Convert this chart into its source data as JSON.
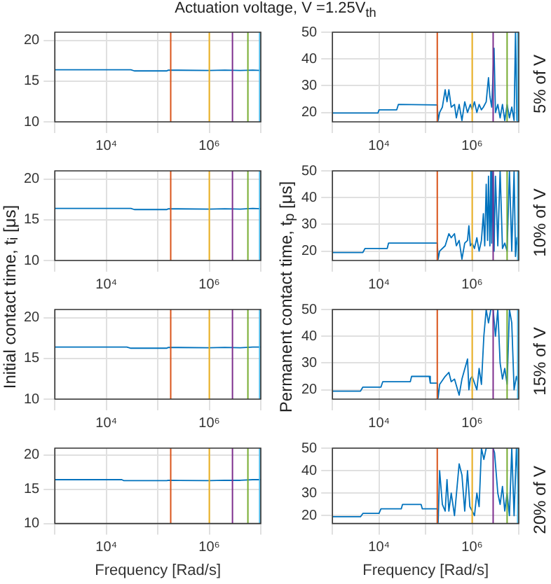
{
  "chart_data": [
    {
      "type": "line",
      "title": "Actuation voltage, V =1.25V$_{th}$",
      "xlim": [
        1000,
        10000000
      ],
      "xticks": [
        {
          "value": 1000,
          "label": null
        },
        {
          "value": 10000,
          "label": "10⁴"
        },
        {
          "value": 100000,
          "label": null
        },
        {
          "value": 1000000,
          "label": "10⁶"
        },
        {
          "value": 10000000,
          "label": null
        }
      ],
      "ylim": [
        10,
        21
      ],
      "yticks": [
        10,
        15,
        20
      ],
      "log": "x",
      "grid": true,
      "series": [
        {
          "color": "#0072bd",
          "x": [
            1000,
            30000,
            35000,
            150000,
            160000,
            1000000,
            2000000,
            4000000,
            7000000,
            10000000
          ],
          "values": [
            16.4,
            16.4,
            16.25,
            16.25,
            16.35,
            16.3,
            16.35,
            16.3,
            16.35,
            16.3
          ]
        }
      ],
      "ref_lines": [
        {
          "axis": "x",
          "value": 178000,
          "color": "#d95319"
        },
        {
          "axis": "x",
          "value": 1000000,
          "color": "#edb120"
        },
        {
          "axis": "x",
          "value": 2820000,
          "color": "#7e2f8e"
        },
        {
          "axis": "x",
          "value": 5620000,
          "color": "#77ac30"
        },
        {
          "axis": "x",
          "value": 9500000,
          "color": "#4dbeee"
        }
      ]
    },
    {
      "type": "line",
      "y2label": "5% of V",
      "xlim": [
        1000,
        10000000
      ],
      "xticks": [
        {
          "value": 1000,
          "label": null
        },
        {
          "value": 10000,
          "label": "10⁴"
        },
        {
          "value": 100000,
          "label": null
        },
        {
          "value": 1000000,
          "label": "10⁶"
        },
        {
          "value": 10000000,
          "label": null
        }
      ],
      "ylim": [
        16.5,
        50
      ],
      "yticks": [
        20,
        30,
        40,
        50
      ],
      "log": "x",
      "grid": true,
      "series": [
        {
          "color": "#0072bd",
          "x": [
            1000,
            9500,
            10000,
            24000,
            26000,
            178000,
            186000,
            200000,
            229000,
            263000,
            288000,
            316000,
            355000,
            417000,
            457000,
            525000,
            603000,
            692000,
            794000,
            912000,
            1000000,
            1120000,
            1260000,
            1410000,
            1580000,
            1740000,
            2000000,
            2240000,
            2400000,
            2630000,
            2950000,
            3160000,
            3550000,
            3980000,
            4470000,
            5010000,
            5620000,
            6310000,
            7080000,
            7940000,
            8510000,
            9120000,
            10000000
          ],
          "values": [
            19.8,
            19.8,
            21,
            21,
            23,
            22.8,
            17,
            20,
            22,
            28.5,
            24,
            28.5,
            22,
            23,
            18,
            23,
            17,
            24,
            20,
            23,
            21,
            24,
            20,
            23,
            21,
            22,
            24,
            33,
            26,
            22,
            44,
            20,
            23,
            18,
            23,
            17,
            23,
            18,
            22,
            17,
            50,
            17,
            21
          ]
        }
      ],
      "ref_lines": [
        {
          "axis": "x",
          "value": 178000,
          "color": "#d95319"
        },
        {
          "axis": "x",
          "value": 1000000,
          "color": "#edb120"
        },
        {
          "axis": "x",
          "value": 2820000,
          "color": "#7e2f8e"
        },
        {
          "axis": "x",
          "value": 5620000,
          "color": "#77ac30"
        },
        {
          "axis": "x",
          "value": 9500000,
          "color": "#4dbeee"
        }
      ]
    },
    {
      "type": "line",
      "ylabel": "Initial contact time, t$_{i}$ [μs]",
      "xlim": [
        1000,
        10000000
      ],
      "xticks": [
        {
          "value": 1000,
          "label": null
        },
        {
          "value": 10000,
          "label": "10⁴"
        },
        {
          "value": 100000,
          "label": null
        },
        {
          "value": 1000000,
          "label": "10⁶"
        },
        {
          "value": 10000000,
          "label": null
        }
      ],
      "ylim": [
        10,
        21
      ],
      "yticks": [
        10,
        15,
        20
      ],
      "log": "x",
      "grid": true,
      "series": [
        {
          "color": "#0072bd",
          "x": [
            1000,
            30000,
            35000,
            150000,
            160000,
            1000000,
            2000000,
            4000000,
            7000000,
            10000000
          ],
          "values": [
            16.4,
            16.4,
            16.25,
            16.25,
            16.35,
            16.3,
            16.35,
            16.3,
            16.4,
            16.35
          ]
        }
      ],
      "ref_lines": [
        {
          "axis": "x",
          "value": 178000,
          "color": "#d95319"
        },
        {
          "axis": "x",
          "value": 1000000,
          "color": "#edb120"
        },
        {
          "axis": "x",
          "value": 2820000,
          "color": "#7e2f8e"
        },
        {
          "axis": "x",
          "value": 5620000,
          "color": "#77ac30"
        },
        {
          "axis": "x",
          "value": 9500000,
          "color": "#4dbeee"
        }
      ]
    },
    {
      "type": "line",
      "ylabel": "Permanent contact time, t$_{p}$ [μs]",
      "y2label": "10% of V",
      "xlim": [
        1000,
        10000000
      ],
      "xticks": [
        {
          "value": 1000,
          "label": null
        },
        {
          "value": 10000,
          "label": "10⁴"
        },
        {
          "value": 100000,
          "label": null
        },
        {
          "value": 1000000,
          "label": "10⁶"
        },
        {
          "value": 10000000,
          "label": null
        }
      ],
      "ylim": [
        16.5,
        50
      ],
      "yticks": [
        20,
        30,
        40,
        50
      ],
      "log": "x",
      "grid": true,
      "series": [
        {
          "color": "#0072bd",
          "x": [
            1000,
            4500,
            5000,
            15000,
            16000,
            178000,
            186000,
            200000,
            263000,
            316000,
            355000,
            417000,
            457000,
            525000,
            603000,
            692000,
            794000,
            850000,
            912000,
            1000000,
            1120000,
            1260000,
            1410000,
            1580000,
            1740000,
            1860000,
            2000000,
            2140000,
            2240000,
            2400000,
            2510000,
            2630000,
            2820000,
            2950000,
            3160000,
            3550000,
            3980000,
            4470000,
            5010000,
            5620000,
            6310000,
            7080000,
            7940000,
            8510000,
            9120000,
            10000000
          ],
          "values": [
            19.5,
            19.5,
            21,
            21,
            23,
            23,
            17,
            20,
            22,
            26.5,
            25,
            26.5,
            22,
            24,
            17,
            23,
            24,
            29.5,
            22,
            23,
            21,
            25,
            20,
            24,
            34,
            22,
            45,
            24,
            48,
            22,
            50,
            23,
            50,
            20,
            48,
            22,
            50,
            21,
            23,
            20,
            50,
            20,
            50,
            18,
            25,
            20
          ]
        }
      ],
      "ref_lines": [
        {
          "axis": "x",
          "value": 178000,
          "color": "#d95319"
        },
        {
          "axis": "x",
          "value": 1000000,
          "color": "#edb120"
        },
        {
          "axis": "x",
          "value": 2820000,
          "color": "#7e2f8e"
        },
        {
          "axis": "x",
          "value": 5620000,
          "color": "#77ac30"
        },
        {
          "axis": "x",
          "value": 9500000,
          "color": "#4dbeee"
        }
      ]
    },
    {
      "type": "line",
      "xlim": [
        1000,
        10000000
      ],
      "xticks": [
        {
          "value": 1000,
          "label": null
        },
        {
          "value": 10000,
          "label": "10⁴"
        },
        {
          "value": 100000,
          "label": null
        },
        {
          "value": 1000000,
          "label": "10⁶"
        },
        {
          "value": 10000000,
          "label": null
        }
      ],
      "ylim": [
        10,
        21
      ],
      "yticks": [
        10,
        15,
        20
      ],
      "log": "x",
      "grid": true,
      "series": [
        {
          "color": "#0072bd",
          "x": [
            1000,
            25000,
            30000,
            150000,
            160000,
            1000000,
            2000000,
            4000000,
            7000000,
            10000000
          ],
          "values": [
            16.4,
            16.4,
            16.25,
            16.25,
            16.35,
            16.3,
            16.35,
            16.3,
            16.4,
            16.4
          ]
        }
      ],
      "ref_lines": [
        {
          "axis": "x",
          "value": 178000,
          "color": "#d95319"
        },
        {
          "axis": "x",
          "value": 1000000,
          "color": "#edb120"
        },
        {
          "axis": "x",
          "value": 2820000,
          "color": "#7e2f8e"
        },
        {
          "axis": "x",
          "value": 5620000,
          "color": "#77ac30"
        },
        {
          "axis": "x",
          "value": 9500000,
          "color": "#4dbeee"
        }
      ]
    },
    {
      "type": "line",
      "y2label": "15% of V",
      "xlim": [
        1000,
        10000000
      ],
      "xticks": [
        {
          "value": 1000,
          "label": null
        },
        {
          "value": 10000,
          "label": "10⁴"
        },
        {
          "value": 100000,
          "label": null
        },
        {
          "value": 1000000,
          "label": "10⁶"
        },
        {
          "value": 10000000,
          "label": null
        }
      ],
      "ylim": [
        16.5,
        50
      ],
      "yticks": [
        20,
        30,
        40,
        50
      ],
      "log": "x",
      "grid": true,
      "series": [
        {
          "color": "#0072bd",
          "x": [
            1000,
            4000,
            4500,
            11000,
            12000,
            47000,
            50000,
            120000,
            126000,
            178000,
            186000,
            200000,
            263000,
            316000,
            355000,
            417000,
            525000,
            603000,
            794000,
            850000,
            912000,
            1000000,
            1260000,
            1410000,
            1580000,
            1780000,
            2000000,
            2240000,
            2510000,
            2820000,
            3160000,
            3550000,
            3980000,
            4470000,
            5010000,
            5620000,
            6310000,
            7080000,
            7940000,
            8910000,
            10000000
          ],
          "values": [
            19.5,
            19.5,
            21,
            21,
            23,
            23,
            25,
            25,
            22.5,
            22.5,
            17,
            22,
            25,
            26.5,
            23,
            24,
            18,
            24,
            31.5,
            20,
            24,
            25,
            20,
            28,
            22,
            40,
            50,
            45,
            50,
            50,
            40,
            50,
            30,
            24,
            28,
            22,
            50,
            45,
            20,
            25,
            22
          ]
        }
      ],
      "ref_lines": [
        {
          "axis": "x",
          "value": 178000,
          "color": "#d95319"
        },
        {
          "axis": "x",
          "value": 1000000,
          "color": "#edb120"
        },
        {
          "axis": "x",
          "value": 2820000,
          "color": "#7e2f8e"
        },
        {
          "axis": "x",
          "value": 5620000,
          "color": "#77ac30"
        },
        {
          "axis": "x",
          "value": 9500000,
          "color": "#4dbeee"
        }
      ]
    },
    {
      "type": "line",
      "xlabel": "Frequency [Rad/s]",
      "xlim": [
        1000,
        10000000
      ],
      "xticks": [
        {
          "value": 1000,
          "label": null
        },
        {
          "value": 10000,
          "label": "10⁴"
        },
        {
          "value": 100000,
          "label": null
        },
        {
          "value": 1000000,
          "label": "10⁶"
        },
        {
          "value": 10000000,
          "label": null
        }
      ],
      "ylim": [
        10,
        21
      ],
      "yticks": [
        10,
        15,
        20
      ],
      "log": "x",
      "grid": true,
      "series": [
        {
          "color": "#0072bd",
          "x": [
            1000,
            20000,
            22000,
            150000,
            160000,
            1000000,
            2000000,
            4000000,
            7000000,
            10000000
          ],
          "values": [
            16.4,
            16.4,
            16.25,
            16.25,
            16.3,
            16.25,
            16.3,
            16.3,
            16.4,
            16.4
          ]
        }
      ],
      "ref_lines": [
        {
          "axis": "x",
          "value": 178000,
          "color": "#d95319"
        },
        {
          "axis": "x",
          "value": 1000000,
          "color": "#edb120"
        },
        {
          "axis": "x",
          "value": 2820000,
          "color": "#7e2f8e"
        },
        {
          "axis": "x",
          "value": 5620000,
          "color": "#77ac30"
        },
        {
          "axis": "x",
          "value": 9500000,
          "color": "#4dbeee"
        }
      ]
    },
    {
      "type": "line",
      "xlabel": "Frequency [Rad/s]",
      "y2label": "20% of V",
      "xlim": [
        1000,
        10000000
      ],
      "xticks": [
        {
          "value": 1000,
          "label": null
        },
        {
          "value": 10000,
          "label": "10⁴"
        },
        {
          "value": 100000,
          "label": null
        },
        {
          "value": 1000000,
          "label": "10⁶"
        },
        {
          "value": 10000000,
          "label": null
        }
      ],
      "ylim": [
        16.5,
        50
      ],
      "yticks": [
        20,
        30,
        40,
        50
      ],
      "log": "x",
      "grid": true,
      "series": [
        {
          "color": "#0072bd",
          "x": [
            1000,
            4000,
            4500,
            10000,
            11000,
            30000,
            32000,
            80000,
            85000,
            178000,
            186000,
            200000,
            229000,
            263000,
            288000,
            316000,
            355000,
            417000,
            525000,
            603000,
            692000,
            794000,
            891000,
            1000000,
            1120000,
            1260000,
            1410000,
            1580000,
            1780000,
            2000000,
            2820000,
            3020000,
            3550000,
            3980000,
            4470000,
            5010000,
            5620000,
            6310000,
            7080000,
            7940000,
            8910000,
            10000000
          ],
          "values": [
            19.5,
            19.5,
            21,
            21,
            23,
            23,
            25,
            25,
            23,
            23,
            17,
            40,
            25,
            22,
            36,
            22,
            30,
            20,
            43,
            38,
            22,
            40,
            24,
            22,
            20,
            30,
            24,
            50,
            45,
            50,
            50,
            48,
            30,
            25,
            33,
            22,
            30,
            20,
            50,
            20,
            50,
            25
          ]
        }
      ],
      "ref_lines": [
        {
          "axis": "x",
          "value": 178000,
          "color": "#d95319"
        },
        {
          "axis": "x",
          "value": 1000000,
          "color": "#edb120"
        },
        {
          "axis": "x",
          "value": 2820000,
          "color": "#7e2f8e"
        },
        {
          "axis": "x",
          "value": 5620000,
          "color": "#77ac30"
        },
        {
          "axis": "x",
          "value": 9500000,
          "color": "#4dbeee"
        }
      ]
    }
  ]
}
